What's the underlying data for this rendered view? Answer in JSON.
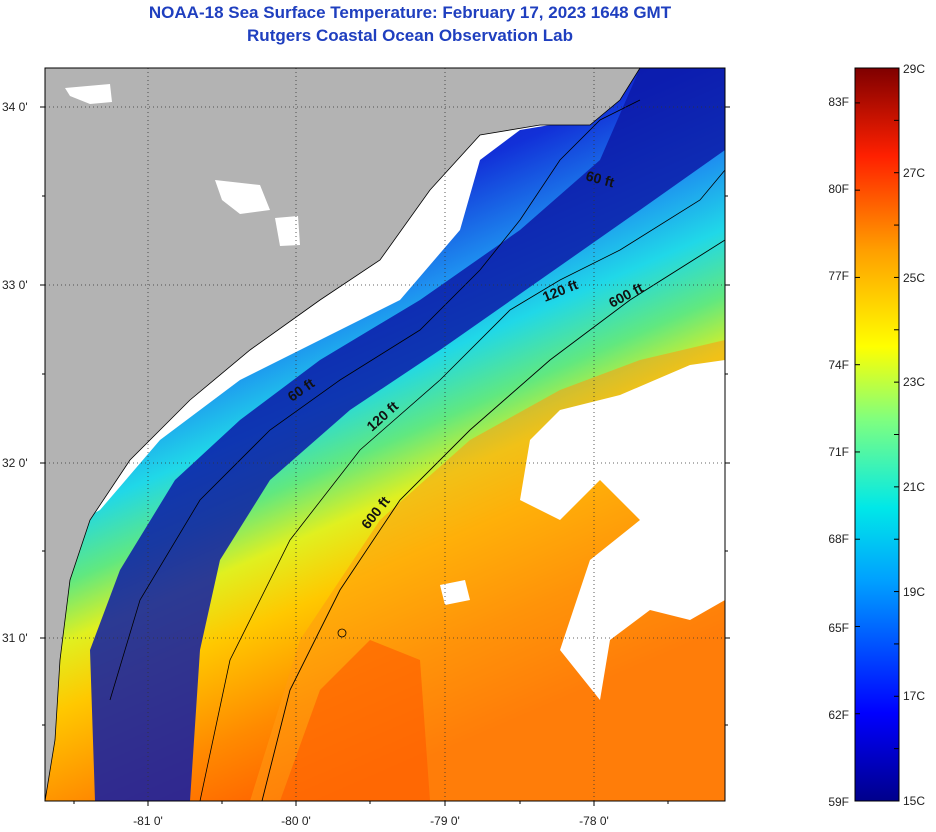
{
  "header": {
    "title": "NOAA-18 Sea Surface Temperature:  February 17, 2023 1648 GMT",
    "subtitle": "Rutgers Coastal Ocean Observation Lab"
  },
  "map": {
    "lat_labels": [
      "34 0'",
      "33 0'",
      "32 0'",
      "31 0'"
    ],
    "lon_labels": [
      "-81 0'",
      "-80 0'",
      "-79 0'",
      "-78 0'"
    ],
    "contour_labels": [
      "60 ft",
      "120 ft",
      "600 ft",
      "60 ft",
      "120 ft",
      "600 ft"
    ],
    "colors": {
      "land": "#b3b3b3",
      "cloud": "#ffffff",
      "sst_cold": "#0a14a0",
      "sst_warm": "#ff7a00"
    }
  },
  "colorbar": {
    "fahrenheit_labels": [
      "83F",
      "80F",
      "77F",
      "74F",
      "71F",
      "68F",
      "65F",
      "62F",
      "59F"
    ],
    "celsius_labels": [
      "29C",
      "27C",
      "25C",
      "23C",
      "21C",
      "19C",
      "17C",
      "15C"
    ],
    "range_c": [
      15,
      29
    ],
    "range_f": [
      59,
      84.2
    ]
  }
}
